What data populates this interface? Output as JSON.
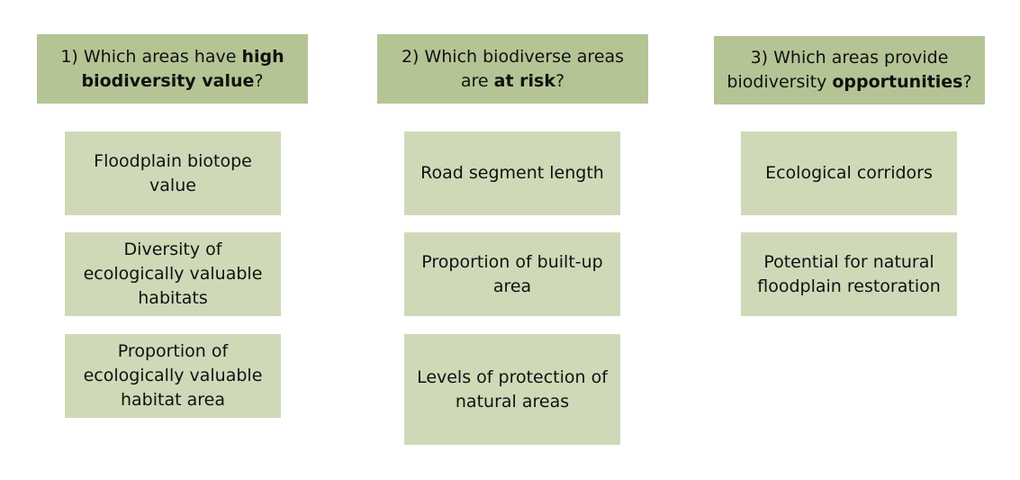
{
  "colors": {
    "header_bg": "#b5c495",
    "item_bg": "#cfd9b8",
    "text": "#111111"
  },
  "columns": [
    {
      "header": {
        "pre": "1) Which areas have ",
        "bold": "high biodiversity value",
        "post": "?"
      },
      "items": [
        "Floodplain biotope value",
        "Diversity of ecologically valuable habitats",
        "Proportion of ecologically valuable habitat area"
      ]
    },
    {
      "header": {
        "pre": "2) Which biodiverse areas are ",
        "bold": "at risk",
        "post": "?"
      },
      "items": [
        "Road segment length",
        "Proportion of built-up area",
        "Levels of protection of natural areas"
      ]
    },
    {
      "header": {
        "pre": "3) Which areas provide biodiversity ",
        "bold": "opportunities",
        "post": "?"
      },
      "items": [
        "Ecological corridors",
        "Potential for natural floodplain restoration"
      ]
    }
  ]
}
